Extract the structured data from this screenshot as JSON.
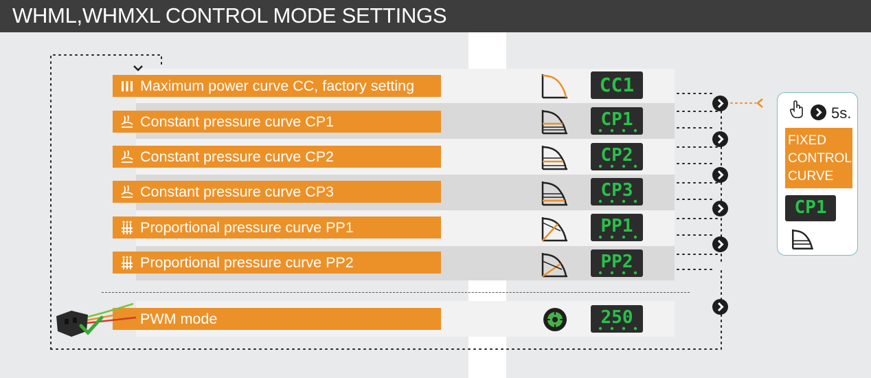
{
  "header": {
    "title": "WHML,WHMXL CONTROL MODE SETTINGS"
  },
  "modes": [
    {
      "label": "Maximum power curve CC, factory setting",
      "mode_icon": "bars-icon",
      "curve_icon": "max-power-curve-icon",
      "display": "CC1"
    },
    {
      "label": "Constant pressure curve CP1",
      "mode_icon": "constant-pressure-icon",
      "curve_icon": "constant-pressure-curve-icon",
      "display": "CP1"
    },
    {
      "label": "Constant pressure curve CP2",
      "mode_icon": "constant-pressure-icon",
      "curve_icon": "constant-pressure-curve-icon",
      "display": "CP2"
    },
    {
      "label": "Constant pressure curve CP3",
      "mode_icon": "constant-pressure-icon",
      "curve_icon": "constant-pressure-curve-icon",
      "display": "CP3"
    },
    {
      "label": "Proportional pressure curve PP1",
      "mode_icon": "proportional-pressure-icon",
      "curve_icon": "proportional-pressure-curve-icon",
      "display": "PP1"
    },
    {
      "label": "Proportional pressure curve PP2",
      "mode_icon": "proportional-pressure-icon",
      "curve_icon": "proportional-pressure-curve-icon",
      "display": "PP2"
    }
  ],
  "pwm": {
    "label": "PWM mode",
    "display": "250",
    "mode_icon": "pwm-connector-icon",
    "status_icon": "checkmark-icon",
    "curve_icon": "pwm-dial-icon"
  },
  "side_panel": {
    "hold_time": "5s.",
    "hold_icon": "hand-pointer-icon",
    "fixed_label": "FIXED\nCONTROL\nCURVE",
    "display": "CP1",
    "curve_icon": "constant-pressure-curve-icon"
  },
  "colors": {
    "accent_orange": "#ec9128",
    "header_bg": "#3d3d3d",
    "display_bg": "#2c2c2c",
    "display_digits": "#27c24a",
    "side_border": "#7fb9c6"
  }
}
